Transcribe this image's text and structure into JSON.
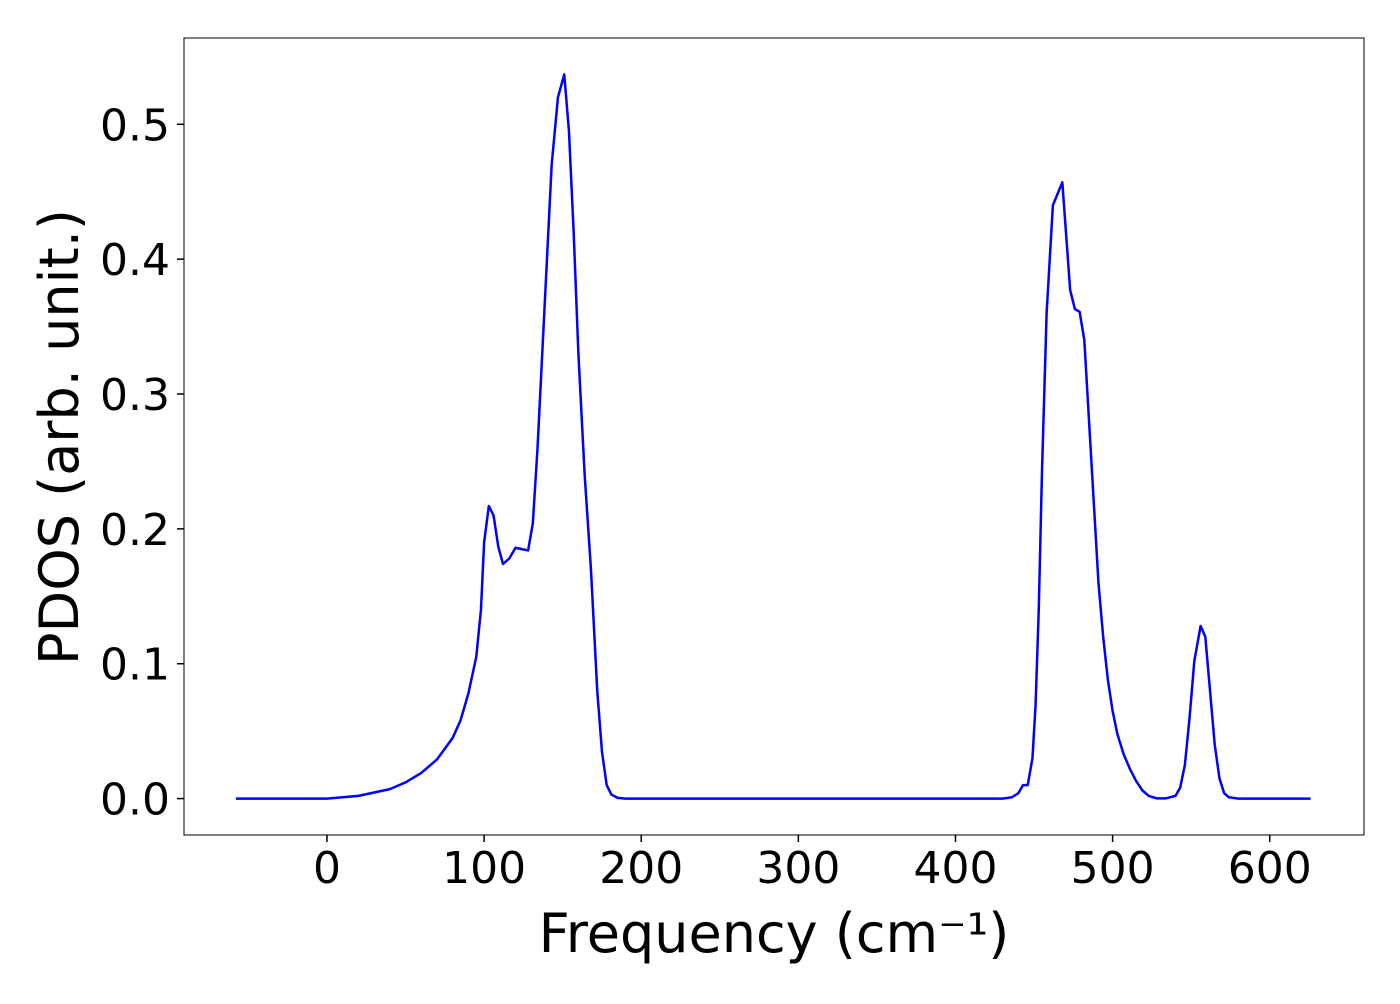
{
  "chart_data": {
    "type": "line",
    "xlabel": "Frequency (cm⁻¹)",
    "ylabel": "PDOS (arb. unit.)",
    "x": [
      -58,
      0,
      20,
      40,
      50,
      60,
      70,
      80,
      85,
      90,
      95,
      98,
      100,
      103,
      106,
      109,
      112,
      116,
      120,
      124,
      128,
      131,
      134,
      137,
      140,
      143,
      147,
      151,
      154,
      157,
      160,
      164,
      168,
      172,
      175,
      178,
      181,
      185,
      190,
      430,
      436,
      440,
      443,
      446,
      449,
      451,
      453,
      455,
      458,
      462,
      468,
      470,
      473,
      476,
      479,
      482,
      485,
      488,
      491,
      494,
      497,
      500,
      503,
      507,
      511,
      515,
      519,
      523,
      528,
      534,
      540,
      543,
      546,
      549,
      552,
      556,
      559,
      562,
      565,
      568,
      571,
      574,
      580,
      626
    ],
    "series": [
      {
        "name": "PDOS",
        "color": "#0000ff",
        "values": [
          0,
          0,
          0.002,
          0.007,
          0.012,
          0.019,
          0.029,
          0.045,
          0.058,
          0.078,
          0.105,
          0.14,
          0.19,
          0.217,
          0.21,
          0.187,
          0.174,
          0.178,
          0.186,
          0.185,
          0.184,
          0.204,
          0.26,
          0.33,
          0.4,
          0.47,
          0.52,
          0.537,
          0.495,
          0.42,
          0.33,
          0.24,
          0.17,
          0.08,
          0.035,
          0.01,
          0.003,
          0.0005,
          0,
          0,
          0.001,
          0.004,
          0.01,
          0.01,
          0.03,
          0.07,
          0.14,
          0.24,
          0.36,
          0.44,
          0.457,
          0.425,
          0.377,
          0.363,
          0.361,
          0.34,
          0.28,
          0.22,
          0.16,
          0.12,
          0.088,
          0.065,
          0.048,
          0.033,
          0.022,
          0.013,
          0.006,
          0.002,
          0.0002,
          0.0002,
          0.002,
          0.008,
          0.025,
          0.06,
          0.102,
          0.128,
          0.12,
          0.08,
          0.04,
          0.015,
          0.004,
          0.001,
          0,
          0
        ]
      }
    ],
    "xlim": [
      -91,
      660
    ],
    "ylim": [
      -0.027,
      0.564
    ],
    "xticks": [
      0,
      100,
      200,
      300,
      400,
      500,
      600
    ],
    "yticks": [
      {
        "value": 0,
        "label": "0.0"
      },
      0.1,
      0.2,
      0.3,
      0.4,
      0.5
    ],
    "grid": false
  }
}
